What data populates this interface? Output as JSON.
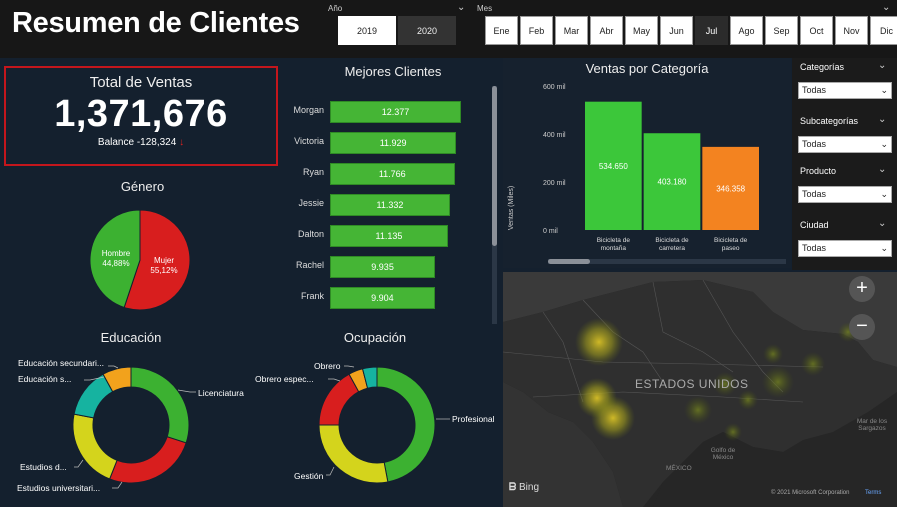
{
  "title": "Resumen de Clientes",
  "year_slicer": {
    "label": "Año",
    "options": [
      "2019",
      "2020"
    ]
  },
  "month_slicer": {
    "label": "Mes",
    "months": [
      "Ene",
      "Feb",
      "Mar",
      "Abr",
      "May",
      "Jun",
      "Jul",
      "Ago",
      "Sep",
      "Oct",
      "Nov",
      "Dic"
    ],
    "selected": "Jul"
  },
  "kpi": {
    "label": "Total de Ventas",
    "value": "1,371,676",
    "balance": "Balance -128,324"
  },
  "gender": {
    "title": "Género",
    "slices": [
      {
        "label": "Hombre",
        "pct": "44,88%",
        "value": 44.88,
        "color": "#3cb131"
      },
      {
        "label": "Mujer",
        "pct": "55,12%",
        "value": 55.12,
        "color": "#d81e1e"
      }
    ]
  },
  "best_clients": {
    "title": "Mejores Clientes",
    "rows": [
      {
        "name": "Morgan",
        "value": 12.377,
        "label": "12.377"
      },
      {
        "name": "Victoria",
        "value": 11.929,
        "label": "11.929"
      },
      {
        "name": "Ryan",
        "value": 11.766,
        "label": "11.766"
      },
      {
        "name": "Jessie",
        "value": 11.332,
        "label": "11.332"
      },
      {
        "name": "Dalton",
        "value": 11.135,
        "label": "11.135"
      },
      {
        "name": "Rachel",
        "value": 9.935,
        "label": "9.935"
      },
      {
        "name": "Frank",
        "value": 9.904,
        "label": "9.904"
      }
    ]
  },
  "chart_data": {
    "type": "bar",
    "title": "Ventas por Categoría",
    "ylabel": "Ventas (Miles)",
    "yticks": [
      "0 mil",
      "200 mil",
      "400 mil",
      "600 mil"
    ],
    "ylim": [
      0,
      600
    ],
    "categories": [
      "Bicicleta de montaña",
      "Bicicleta de carretera",
      "Bicicleta de paseo"
    ],
    "values": [
      534.65,
      403.18,
      346.358
    ],
    "labels": [
      "534.650",
      "403.180",
      "346.358"
    ],
    "colors": [
      "#3cc73a",
      "#3cc73a",
      "#f38320"
    ]
  },
  "filters": [
    {
      "label": "Categorías",
      "value": "Todas"
    },
    {
      "label": "Subcategorías",
      "value": "Todas"
    },
    {
      "label": "Producto",
      "value": "Todas"
    },
    {
      "label": "Ciudad",
      "value": "Todas"
    }
  ],
  "education": {
    "title": "Educación",
    "slices": [
      {
        "label": "Licenciatura",
        "value": 30,
        "color": "#3cb131"
      },
      {
        "label": "Estudios universitari...",
        "value": 26,
        "color": "#d81e1e"
      },
      {
        "label": "Estudios d...",
        "value": 22,
        "color": "#d4d41c"
      },
      {
        "label": "Educación s...",
        "value": 14,
        "color": "#16b3a0"
      },
      {
        "label": "Educación secundari...",
        "value": 8,
        "color": "#f2a21c"
      }
    ]
  },
  "occupation": {
    "title": "Ocupación",
    "slices": [
      {
        "label": "Profesional",
        "value": 47,
        "color": "#3cb131"
      },
      {
        "label": "Gestión",
        "value": 28,
        "color": "#d4d41c"
      },
      {
        "label": "Obrero espec...",
        "value": 17,
        "color": "#d81e1e"
      },
      {
        "label": "Obrero",
        "value": 4,
        "color": "#f2a21c"
      },
      {
        "label": "",
        "value": 4,
        "color": "#16b3a0"
      }
    ]
  },
  "map": {
    "country_label": "ESTADOS UNIDOS",
    "provider": "Bing",
    "copyright": "© 2021 Microsoft Corporation",
    "terms": "Terms",
    "sea_labels": [
      "Mar de los Sargazos",
      "Golfo de México",
      "MÉXICO"
    ],
    "zoom_in": "+",
    "zoom_out": "−"
  }
}
